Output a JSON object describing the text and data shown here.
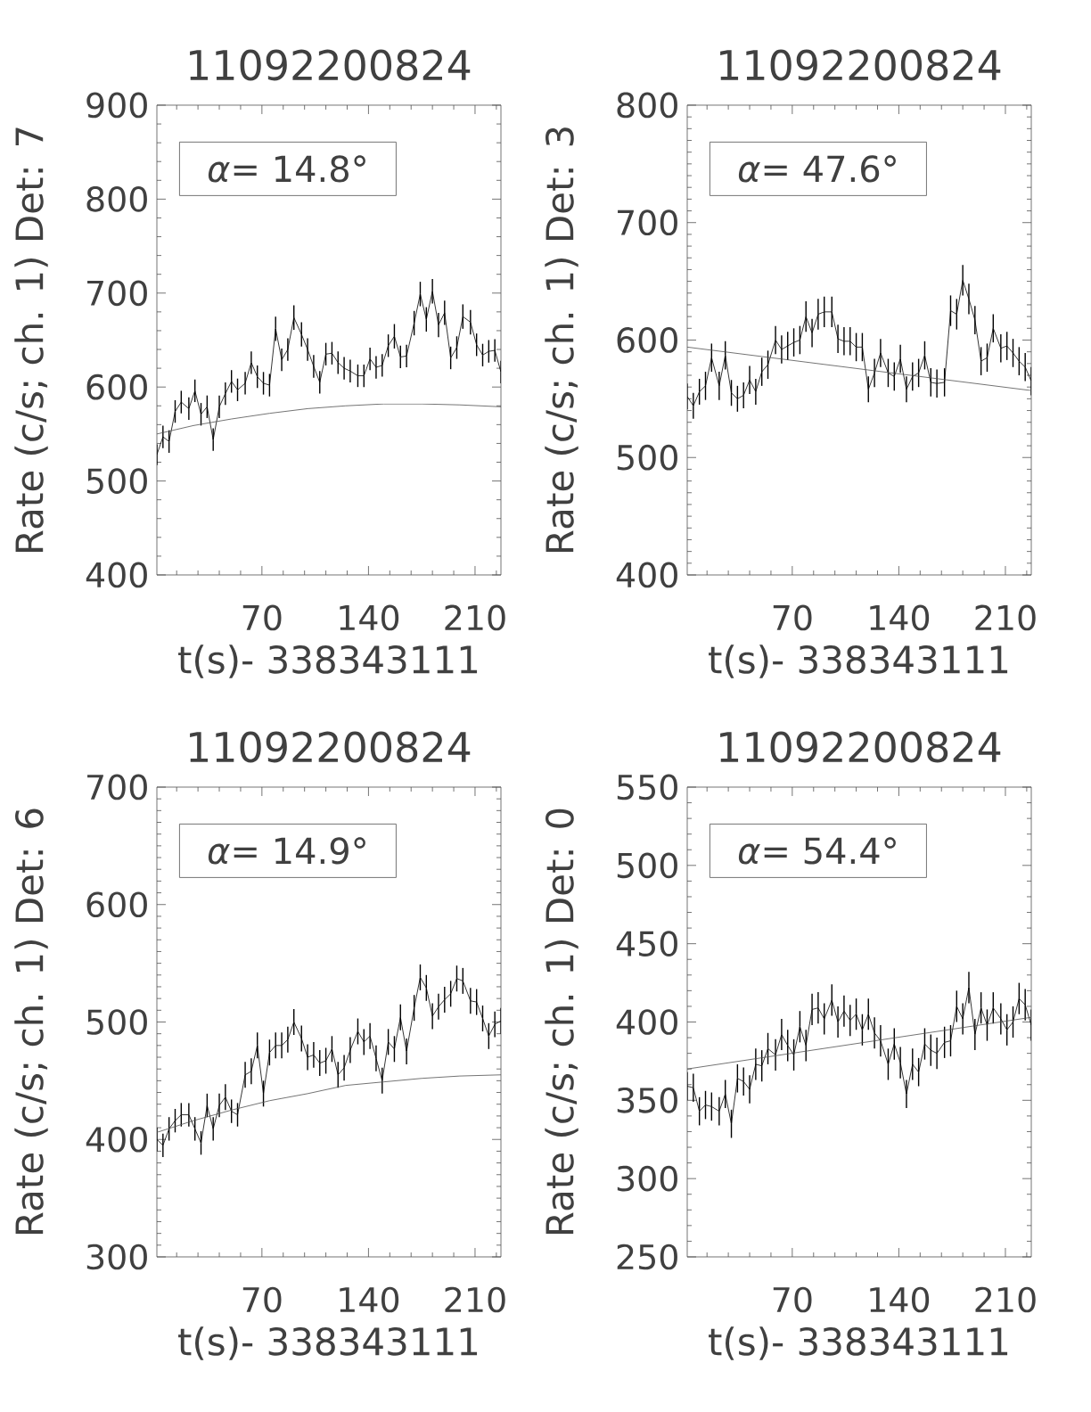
{
  "chart_data": [
    {
      "type": "line",
      "title": "11092200824",
      "xlabel": "t(s)- 338343111",
      "ylabel": "Rate (c/s; ch. 1) Det: 7",
      "annotations": [
        "*α*= 14.8°"
      ],
      "xlim": [
        1,
        227
      ],
      "ylim": [
        400,
        900
      ],
      "xticks": [
        {
          "value": 14,
          "label": null
        },
        {
          "value": 28,
          "label": null
        },
        {
          "value": 42,
          "label": null
        },
        {
          "value": 56,
          "label": null
        },
        70,
        {
          "value": 84,
          "label": null
        },
        {
          "value": 98,
          "label": null
        },
        {
          "value": 112,
          "label": null
        },
        {
          "value": 126,
          "label": null
        },
        140,
        {
          "value": 154,
          "label": null
        },
        {
          "value": 168,
          "label": null
        },
        {
          "value": 182,
          "label": null
        },
        {
          "value": 196,
          "label": null
        },
        210,
        {
          "value": 224,
          "label": null
        }
      ],
      "yticks": [
        400,
        {
          "value": 420,
          "label": null
        },
        {
          "value": 440,
          "label": null
        },
        {
          "value": 460,
          "label": null
        },
        {
          "value": 480,
          "label": null
        },
        500,
        {
          "value": 520,
          "label": null
        },
        {
          "value": 540,
          "label": null
        },
        {
          "value": 560,
          "label": null
        },
        {
          "value": 580,
          "label": null
        },
        600,
        {
          "value": 620,
          "label": null
        },
        {
          "value": 640,
          "label": null
        },
        {
          "value": 660,
          "label": null
        },
        {
          "value": 680,
          "label": null
        },
        700,
        {
          "value": 720,
          "label": null
        },
        {
          "value": 740,
          "label": null
        },
        {
          "value": 760,
          "label": null
        },
        {
          "value": 780,
          "label": null
        },
        800,
        {
          "value": 820,
          "label": null
        },
        {
          "value": 840,
          "label": null
        },
        {
          "value": 860,
          "label": null
        },
        {
          "value": 880,
          "label": null
        },
        900
      ],
      "x": [
        1,
        5,
        9,
        13,
        17,
        22,
        26,
        30,
        34,
        38,
        42,
        46,
        50,
        54,
        59,
        63,
        67,
        71,
        75,
        79,
        83,
        87,
        91,
        96,
        100,
        104,
        108,
        112,
        116,
        120,
        124,
        128,
        133,
        137,
        141,
        145,
        149,
        153,
        157,
        161,
        165,
        170,
        174,
        178,
        182,
        186,
        190,
        194,
        198,
        202,
        207,
        211,
        215,
        219,
        223,
        227
      ],
      "series": [
        {
          "color": "#000000",
          "values": [
            528,
            547,
            542,
            574,
            584,
            577,
            596,
            571,
            579,
            544,
            579,
            593,
            606,
            597,
            604,
            626,
            611,
            604,
            602,
            662,
            629,
            640,
            674,
            656,
            640,
            622,
            605,
            635,
            636,
            626,
            620,
            617,
            612,
            612,
            630,
            621,
            623,
            644,
            654,
            632,
            633,
            668,
            699,
            672,
            702,
            666,
            679,
            631,
            642,
            675,
            669,
            645,
            634,
            638,
            639,
            616
          ],
          "errors": [
            11,
            12,
            12,
            12,
            12,
            12,
            12,
            12,
            12,
            12,
            12,
            12,
            12,
            12,
            12,
            12,
            12,
            12,
            12,
            13,
            12,
            12,
            13,
            13,
            12,
            12,
            12,
            12,
            12,
            12,
            12,
            12,
            12,
            12,
            12,
            12,
            12,
            12,
            13,
            12,
            12,
            13,
            13,
            13,
            13,
            13,
            13,
            12,
            12,
            13,
            13,
            12,
            12,
            12,
            12,
            12
          ]
        },
        {
          "color": "#505050",
          "x": [
            1,
            25,
            50,
            75,
            100,
            125,
            150,
            175,
            200,
            227
          ],
          "values": [
            550,
            559,
            566,
            572,
            577,
            580,
            582,
            582,
            581,
            579
          ]
        }
      ]
    },
    {
      "type": "line",
      "title": "11092200824",
      "xlabel": "t(s)- 338343111",
      "ylabel": "Rate (c/s; ch. 1) Det: 3",
      "annotations": [
        "*α*= 47.6°"
      ],
      "xlim": [
        1,
        227
      ],
      "ylim": [
        400,
        800
      ],
      "xticks": [
        {
          "value": 14,
          "label": null
        },
        {
          "value": 28,
          "label": null
        },
        {
          "value": 42,
          "label": null
        },
        {
          "value": 56,
          "label": null
        },
        70,
        {
          "value": 84,
          "label": null
        },
        {
          "value": 98,
          "label": null
        },
        {
          "value": 112,
          "label": null
        },
        {
          "value": 126,
          "label": null
        },
        140,
        {
          "value": 154,
          "label": null
        },
        {
          "value": 168,
          "label": null
        },
        {
          "value": 182,
          "label": null
        },
        {
          "value": 196,
          "label": null
        },
        210,
        {
          "value": 224,
          "label": null
        }
      ],
      "yticks": [
        400,
        {
          "value": 410,
          "label": null
        },
        {
          "value": 420,
          "label": null
        },
        {
          "value": 430,
          "label": null
        },
        {
          "value": 440,
          "label": null
        },
        {
          "value": 450,
          "label": null
        },
        {
          "value": 460,
          "label": null
        },
        {
          "value": 470,
          "label": null
        },
        {
          "value": 480,
          "label": null
        },
        {
          "value": 490,
          "label": null
        },
        500,
        {
          "value": 510,
          "label": null
        },
        {
          "value": 520,
          "label": null
        },
        {
          "value": 530,
          "label": null
        },
        {
          "value": 540,
          "label": null
        },
        {
          "value": 550,
          "label": null
        },
        {
          "value": 560,
          "label": null
        },
        {
          "value": 570,
          "label": null
        },
        {
          "value": 580,
          "label": null
        },
        {
          "value": 590,
          "label": null
        },
        600,
        {
          "value": 610,
          "label": null
        },
        {
          "value": 620,
          "label": null
        },
        {
          "value": 630,
          "label": null
        },
        {
          "value": 640,
          "label": null
        },
        {
          "value": 650,
          "label": null
        },
        {
          "value": 660,
          "label": null
        },
        {
          "value": 670,
          "label": null
        },
        {
          "value": 680,
          "label": null
        },
        {
          "value": 690,
          "label": null
        },
        700,
        {
          "value": 710,
          "label": null
        },
        {
          "value": 720,
          "label": null
        },
        {
          "value": 730,
          "label": null
        },
        {
          "value": 740,
          "label": null
        },
        {
          "value": 750,
          "label": null
        },
        {
          "value": 760,
          "label": null
        },
        {
          "value": 770,
          "label": null
        },
        {
          "value": 780,
          "label": null
        },
        {
          "value": 790,
          "label": null
        },
        800
      ],
      "x": [
        1,
        5,
        9,
        13,
        17,
        22,
        26,
        30,
        34,
        38,
        42,
        46,
        50,
        54,
        59,
        63,
        67,
        71,
        75,
        79,
        83,
        87,
        91,
        96,
        100,
        104,
        108,
        112,
        116,
        120,
        124,
        128,
        133,
        137,
        141,
        145,
        149,
        153,
        157,
        161,
        165,
        170,
        174,
        178,
        182,
        186,
        190,
        194,
        198,
        202,
        207,
        211,
        215,
        219,
        223,
        227
      ],
      "series": [
        {
          "color": "#000000",
          "values": [
            552,
            544,
            556,
            561,
            585,
            561,
            587,
            555,
            550,
            553,
            566,
            556,
            573,
            579,
            600,
            592,
            595,
            598,
            600,
            620,
            606,
            622,
            624,
            624,
            601,
            599,
            599,
            594,
            594,
            558,
            572,
            589,
            572,
            569,
            584,
            558,
            569,
            572,
            587,
            564,
            563,
            564,
            625,
            622,
            651,
            635,
            617,
            582,
            585,
            610,
            593,
            595,
            589,
            582,
            577,
            565
          ],
          "errors": [
            11,
            11,
            11,
            12,
            12,
            12,
            12,
            11,
            11,
            11,
            12,
            11,
            12,
            12,
            12,
            12,
            12,
            12,
            12,
            13,
            12,
            13,
            13,
            13,
            12,
            12,
            12,
            12,
            12,
            11,
            12,
            12,
            12,
            12,
            12,
            11,
            12,
            12,
            12,
            12,
            12,
            12,
            13,
            13,
            13,
            13,
            12,
            12,
            12,
            12,
            12,
            12,
            12,
            12,
            12,
            12
          ]
        },
        {
          "color": "#505050",
          "x": [
            1,
            227
          ],
          "values": [
            594,
            557
          ]
        }
      ]
    },
    {
      "type": "line",
      "title": "11092200824",
      "xlabel": "t(s)- 338343111",
      "ylabel": "Rate (c/s; ch. 1) Det: 6",
      "annotations": [
        "*α*= 14.9°"
      ],
      "xlim": [
        1,
        227
      ],
      "ylim": [
        300,
        700
      ],
      "xticks": [
        {
          "value": 14,
          "label": null
        },
        {
          "value": 28,
          "label": null
        },
        {
          "value": 42,
          "label": null
        },
        {
          "value": 56,
          "label": null
        },
        70,
        {
          "value": 84,
          "label": null
        },
        {
          "value": 98,
          "label": null
        },
        {
          "value": 112,
          "label": null
        },
        {
          "value": 126,
          "label": null
        },
        140,
        {
          "value": 154,
          "label": null
        },
        {
          "value": 168,
          "label": null
        },
        {
          "value": 182,
          "label": null
        },
        {
          "value": 196,
          "label": null
        },
        210,
        {
          "value": 224,
          "label": null
        }
      ],
      "yticks": [
        300,
        {
          "value": 310,
          "label": null
        },
        {
          "value": 320,
          "label": null
        },
        {
          "value": 330,
          "label": null
        },
        {
          "value": 340,
          "label": null
        },
        {
          "value": 350,
          "label": null
        },
        {
          "value": 360,
          "label": null
        },
        {
          "value": 370,
          "label": null
        },
        {
          "value": 380,
          "label": null
        },
        {
          "value": 390,
          "label": null
        },
        400,
        {
          "value": 410,
          "label": null
        },
        {
          "value": 420,
          "label": null
        },
        {
          "value": 430,
          "label": null
        },
        {
          "value": 440,
          "label": null
        },
        {
          "value": 450,
          "label": null
        },
        {
          "value": 460,
          "label": null
        },
        {
          "value": 470,
          "label": null
        },
        {
          "value": 480,
          "label": null
        },
        {
          "value": 490,
          "label": null
        },
        500,
        {
          "value": 510,
          "label": null
        },
        {
          "value": 520,
          "label": null
        },
        {
          "value": 530,
          "label": null
        },
        {
          "value": 540,
          "label": null
        },
        {
          "value": 550,
          "label": null
        },
        {
          "value": 560,
          "label": null
        },
        {
          "value": 570,
          "label": null
        },
        {
          "value": 580,
          "label": null
        },
        {
          "value": 590,
          "label": null
        },
        600,
        {
          "value": 610,
          "label": null
        },
        {
          "value": 620,
          "label": null
        },
        {
          "value": 630,
          "label": null
        },
        {
          "value": 640,
          "label": null
        },
        {
          "value": 650,
          "label": null
        },
        {
          "value": 660,
          "label": null
        },
        {
          "value": 670,
          "label": null
        },
        {
          "value": 680,
          "label": null
        },
        {
          "value": 690,
          "label": null
        },
        700
      ],
      "x": [
        1,
        5,
        9,
        13,
        17,
        22,
        26,
        30,
        34,
        38,
        42,
        46,
        50,
        54,
        59,
        63,
        67,
        71,
        75,
        79,
        83,
        87,
        91,
        96,
        100,
        104,
        108,
        112,
        116,
        120,
        124,
        128,
        133,
        137,
        141,
        145,
        149,
        153,
        157,
        161,
        165,
        170,
        174,
        178,
        182,
        186,
        190,
        194,
        198,
        202,
        207,
        211,
        215,
        219,
        223,
        227
      ],
      "series": [
        {
          "color": "#000000",
          "values": [
            400,
            395,
            409,
            416,
            421,
            421,
            409,
            397,
            429,
            409,
            429,
            436,
            424,
            421,
            455,
            458,
            480,
            439,
            474,
            480,
            480,
            485,
            500,
            486,
            470,
            472,
            465,
            467,
            477,
            455,
            461,
            476,
            492,
            483,
            488,
            469,
            450,
            483,
            477,
            504,
            475,
            512,
            538,
            529,
            505,
            513,
            519,
            524,
            537,
            535,
            518,
            517,
            503,
            488,
            498,
            501
          ],
          "errors": [
            10,
            10,
            10,
            10,
            10,
            10,
            10,
            10,
            10,
            10,
            10,
            11,
            10,
            10,
            11,
            11,
            11,
            11,
            11,
            11,
            11,
            11,
            11,
            11,
            11,
            11,
            11,
            11,
            11,
            11,
            11,
            11,
            11,
            11,
            11,
            11,
            11,
            11,
            11,
            11,
            11,
            11,
            11,
            11,
            11,
            11,
            11,
            11,
            11,
            11,
            11,
            11,
            11,
            11,
            11,
            11
          ]
        },
        {
          "color": "#505050",
          "x": [
            1,
            25,
            50,
            75,
            100,
            125,
            150,
            175,
            200,
            227
          ],
          "values": [
            406,
            416,
            425,
            433,
            439,
            446,
            449,
            452,
            454,
            455
          ]
        }
      ]
    },
    {
      "type": "line",
      "title": "11092200824",
      "xlabel": "t(s)- 338343111",
      "ylabel": "Rate (c/s; ch. 1) Det: 0",
      "annotations": [
        "*α*= 54.4°"
      ],
      "xlim": [
        1,
        227
      ],
      "ylim": [
        250,
        550
      ],
      "xticks": [
        {
          "value": 14,
          "label": null
        },
        {
          "value": 28,
          "label": null
        },
        {
          "value": 42,
          "label": null
        },
        {
          "value": 56,
          "label": null
        },
        70,
        {
          "value": 84,
          "label": null
        },
        {
          "value": 98,
          "label": null
        },
        {
          "value": 112,
          "label": null
        },
        {
          "value": 126,
          "label": null
        },
        140,
        {
          "value": 154,
          "label": null
        },
        {
          "value": 168,
          "label": null
        },
        {
          "value": 182,
          "label": null
        },
        {
          "value": 196,
          "label": null
        },
        210,
        {
          "value": 224,
          "label": null
        }
      ],
      "yticks": [
        250,
        {
          "value": 260,
          "label": null
        },
        {
          "value": 270,
          "label": null
        },
        {
          "value": 280,
          "label": null
        },
        {
          "value": 290,
          "label": null
        },
        300,
        {
          "value": 310,
          "label": null
        },
        {
          "value": 320,
          "label": null
        },
        {
          "value": 330,
          "label": null
        },
        {
          "value": 340,
          "label": null
        },
        350,
        {
          "value": 360,
          "label": null
        },
        {
          "value": 370,
          "label": null
        },
        {
          "value": 380,
          "label": null
        },
        {
          "value": 390,
          "label": null
        },
        400,
        {
          "value": 410,
          "label": null
        },
        {
          "value": 420,
          "label": null
        },
        {
          "value": 430,
          "label": null
        },
        {
          "value": 440,
          "label": null
        },
        450,
        {
          "value": 460,
          "label": null
        },
        {
          "value": 470,
          "label": null
        },
        {
          "value": 480,
          "label": null
        },
        {
          "value": 490,
          "label": null
        },
        500,
        {
          "value": 510,
          "label": null
        },
        {
          "value": 520,
          "label": null
        },
        {
          "value": 530,
          "label": null
        },
        {
          "value": 540,
          "label": null
        },
        550
      ],
      "x": [
        1,
        5,
        9,
        13,
        17,
        22,
        26,
        30,
        34,
        38,
        42,
        46,
        50,
        54,
        59,
        63,
        67,
        71,
        75,
        79,
        83,
        87,
        91,
        96,
        100,
        104,
        108,
        112,
        116,
        120,
        124,
        128,
        133,
        137,
        141,
        145,
        149,
        153,
        157,
        161,
        165,
        170,
        174,
        178,
        182,
        186,
        190,
        194,
        198,
        202,
        207,
        211,
        215,
        219,
        223,
        227
      ],
      "series": [
        {
          "color": "#000000",
          "values": [
            359,
            358,
            343,
            347,
            346,
            343,
            354,
            335,
            364,
            362,
            357,
            373,
            372,
            383,
            379,
            392,
            385,
            379,
            397,
            385,
            408,
            409,
            402,
            414,
            400,
            407,
            401,
            405,
            395,
            405,
            393,
            388,
            373,
            386,
            374,
            354,
            373,
            368,
            386,
            382,
            380,
            387,
            388,
            410,
            402,
            422,
            392,
            409,
            398,
            409,
            402,
            395,
            400,
            415,
            411,
            398
          ],
          "errors": [
            9,
            9,
            9,
            9,
            9,
            9,
            9,
            9,
            9,
            9,
            9,
            10,
            10,
            10,
            10,
            10,
            10,
            10,
            10,
            10,
            10,
            10,
            10,
            10,
            10,
            10,
            10,
            10,
            10,
            10,
            10,
            10,
            10,
            10,
            10,
            9,
            10,
            9,
            10,
            10,
            10,
            10,
            10,
            10,
            10,
            10,
            10,
            10,
            10,
            10,
            10,
            10,
            10,
            10,
            10,
            10
          ]
        },
        {
          "color": "#505050",
          "x": [
            1,
            227
          ],
          "values": [
            370,
            403
          ]
        }
      ]
    }
  ]
}
